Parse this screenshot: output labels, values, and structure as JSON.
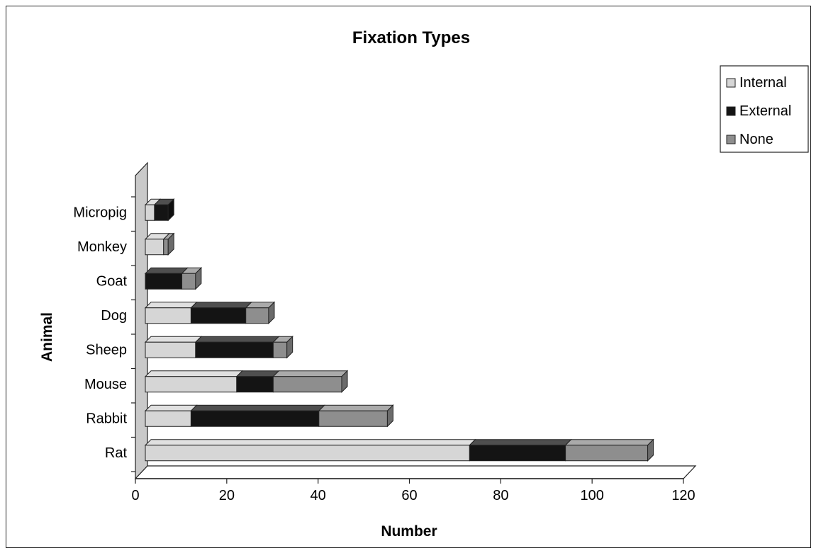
{
  "chart_data": {
    "type": "bar",
    "orientation": "horizontal",
    "stacked": true,
    "three_d": true,
    "title": "Fixation Types",
    "xlabel": "Number",
    "ylabel": "Animal",
    "xlim": [
      0,
      120
    ],
    "xticks": [
      "0",
      "20",
      "40",
      "60",
      "80",
      "100",
      "120"
    ],
    "categories": [
      "Rat",
      "Rabbit",
      "Mouse",
      "Sheep",
      "Dog",
      "Goat",
      "Monkey",
      "Micropig"
    ],
    "series": [
      {
        "name": "Internal",
        "color": "#d6d6d6",
        "values": [
          71,
          10,
          20,
          11,
          10,
          0,
          4,
          2
        ]
      },
      {
        "name": "External",
        "color": "#141414",
        "values": [
          21,
          28,
          8,
          17,
          12,
          8,
          0,
          3
        ]
      },
      {
        "name": "None",
        "color": "#8e8e8e",
        "values": [
          18,
          15,
          15,
          3,
          5,
          3,
          1,
          0
        ]
      }
    ],
    "grid": false,
    "legend_position": "top-right"
  }
}
